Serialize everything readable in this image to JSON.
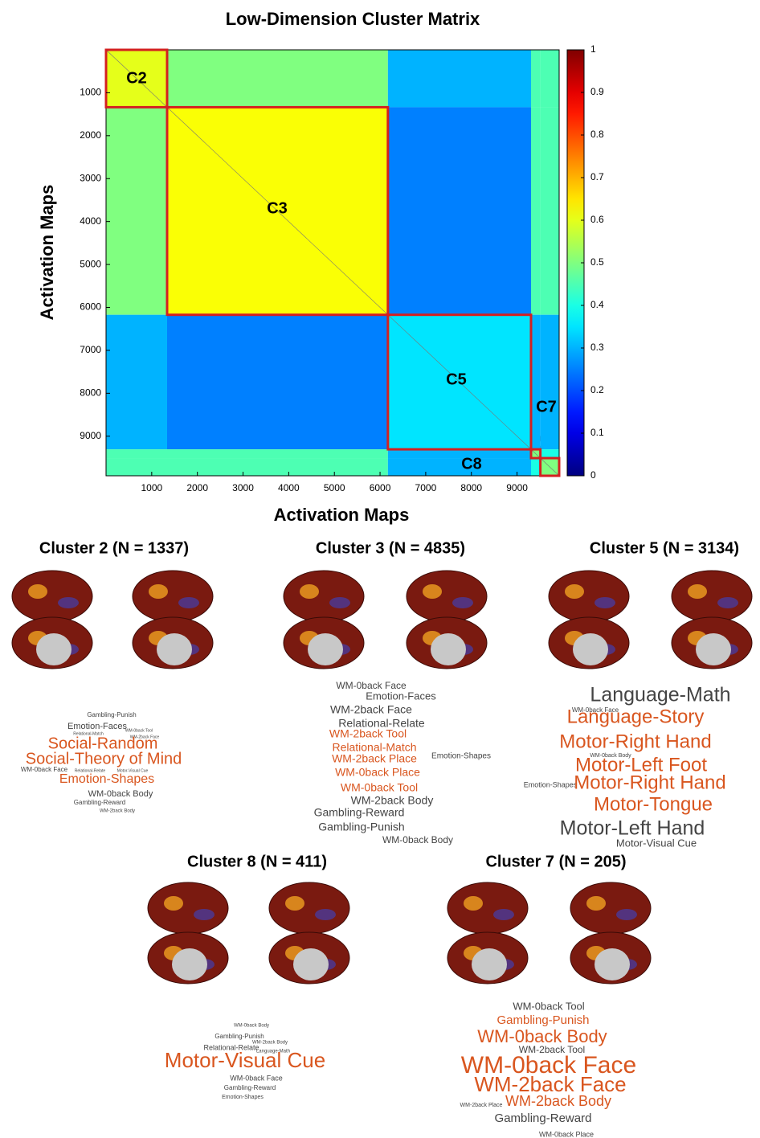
{
  "chart_data": {
    "type": "heatmap",
    "title": "Low-Dimension Cluster Matrix",
    "xlabel": "Activation Maps",
    "ylabel": "Activation Maps",
    "edges": [
      0,
      1337,
      6172,
      9306,
      9511,
      9922
    ],
    "block_labels": [
      "C2",
      "C3",
      "C5",
      "C7",
      "C8"
    ],
    "values": [
      [
        0.6,
        0.5,
        0.3,
        0.45,
        0.45
      ],
      [
        0.5,
        0.62,
        0.25,
        0.45,
        0.45
      ],
      [
        0.3,
        0.25,
        0.35,
        0.3,
        0.3
      ],
      [
        0.45,
        0.45,
        0.3,
        0.5,
        0.4
      ],
      [
        0.45,
        0.45,
        0.3,
        0.4,
        0.5
      ]
    ],
    "xlim": [
      0,
      9922
    ],
    "ylim": [
      0,
      9922
    ],
    "xticks": [
      1000,
      2000,
      3000,
      4000,
      5000,
      6000,
      7000,
      8000,
      9000
    ],
    "yticks": [
      1000,
      2000,
      3000,
      4000,
      5000,
      6000,
      7000,
      8000,
      9000
    ],
    "clim": [
      0,
      1
    ],
    "cticks": [
      0,
      0.1,
      0.2,
      0.3,
      0.4,
      0.5,
      0.6,
      0.7,
      0.8,
      0.9,
      1
    ],
    "colormap": "jet",
    "box_color": "#d42020"
  },
  "clusters": [
    {
      "title": "Cluster 2 (N = 1337)",
      "words": [
        "Gambling-Punish",
        "Emotion-Faces",
        "WM-0back Tool",
        "Relational-Match",
        "WM-2back Face",
        "Social-Random",
        "Social-Theory of Mind",
        "WM-0back Face",
        "Relational-Relate",
        "Motor-Visual Cue",
        "Emotion-Shapes",
        "WM-0back Body",
        "Gambling-Reward",
        "WM-2back Body"
      ]
    },
    {
      "title": "Cluster 3 (N = 4835)",
      "words": [
        "WM-0back Face",
        "Emotion-Faces",
        "WM-2back Face",
        "Relational-Relate",
        "WM-2back Tool",
        "Relational-Match",
        "WM-2back Place",
        "Emotion-Shapes",
        "WM-0back Place",
        "WM-0back Tool",
        "WM-2back Body",
        "Gambling-Reward",
        "Gambling-Punish",
        "WM-0back Body"
      ]
    },
    {
      "title": "Cluster 5 (N = 3134)",
      "words": [
        "Language-Math",
        "WM-0back Face",
        "Language-Story",
        "Motor-Right Hand",
        "WM-0back Body",
        "Motor-Left Foot",
        "Emotion-Shapes",
        "Motor-Right Hand",
        "Motor-Tongue",
        "Motor-Left Hand",
        "Motor-Visual Cue"
      ]
    },
    {
      "title": "Cluster 8 (N = 411)",
      "words": [
        "WM-0back Body",
        "Gambling-Punish",
        "WM-2back Body",
        "Relational-Relate",
        "Language-Math",
        "Motor-Visual Cue",
        "WM-0back Face",
        "Gambling-Reward",
        "Emotion-Shapes"
      ]
    },
    {
      "title": "Cluster 7 (N = 205)",
      "words": [
        "WM-0back Tool",
        "Gambling-Punish",
        "WM-0back Body",
        "WM-2back Tool",
        "WM-0back Face",
        "WM-2back Face",
        "WM-2back Body",
        "WM-2back Place",
        "Gambling-Reward",
        "WM-0back Place"
      ]
    }
  ]
}
